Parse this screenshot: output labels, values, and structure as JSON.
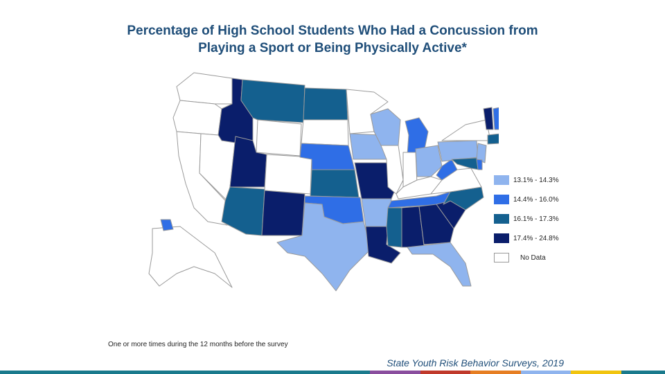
{
  "title_line1": "Percentage of High School Students Who Had a Concussion from",
  "title_line2": "Playing a Sport or Being Physically Active*",
  "legend": [
    {
      "label": "13.1% - 14.3%",
      "color": "#8fb4ee"
    },
    {
      "label": "14.4% - 16.0%",
      "color": "#2f6ee6"
    },
    {
      "label": "16.1% - 17.3%",
      "color": "#14608f"
    },
    {
      "label": "17.4% - 24.8%",
      "color": "#0a1e6b"
    },
    {
      "label": "No Data",
      "color": "#ffffff"
    }
  ],
  "states": {
    "WA": "nodata",
    "OR": "nodata",
    "CA": "nodata",
    "NV": "nodata",
    "ID": "c4",
    "MT": "c3",
    "WY": "nodata",
    "UT": "c4",
    "AZ": "c3",
    "CO": "nodata",
    "NM": "c4",
    "ND": "c3",
    "SD": "nodata",
    "NE": "c2",
    "KS": "c3",
    "OK": "c2",
    "TX": "c1",
    "MN": "nodata",
    "IA": "c1",
    "MO": "c4",
    "AR": "c1",
    "LA": "c4",
    "WI": "c1",
    "IL": "nodata",
    "MI": "c2",
    "IN": "nodata",
    "OH": "c1",
    "KY": "nodata",
    "TN": "c2",
    "MS": "c3",
    "AL": "c4",
    "GA": "c4",
    "FL": "c1",
    "SC": "c4",
    "NC": "c3",
    "VA": "nodata",
    "WV": "c2",
    "PA": "c1",
    "NY": "nodata",
    "VT": "c4",
    "NH": "c2",
    "ME": "nodata",
    "CT": "c3",
    "NJ": "c1",
    "MD": "c3",
    "DE": "c2",
    "AK": "nodata",
    "HI": "c2"
  },
  "footnote": "One or more times during the 12 months before the survey",
  "source": "State Youth Risk Behavior Surveys, 2019",
  "bottom_bar_colors": [
    "#1a7a8c",
    "#8a4e9e",
    "#c0392b",
    "#e67e22",
    "#8fb4ee",
    "#f1c40f",
    "#1a7a8c"
  ]
}
